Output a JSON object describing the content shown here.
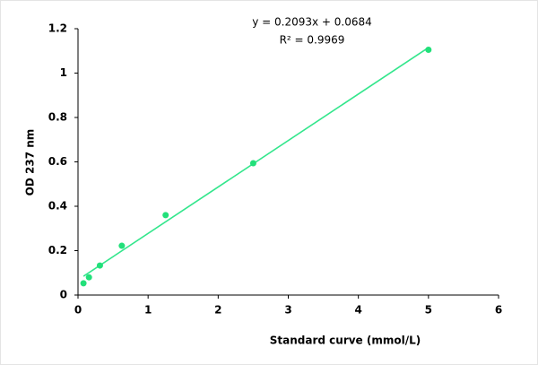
{
  "chart_data": {
    "type": "scatter",
    "x_label": "Standard curve (mmol/L)",
    "y_label": "OD 237 nm",
    "x": [
      0.078,
      0.156,
      0.3125,
      0.625,
      1.25,
      2.5,
      5
    ],
    "values": [
      0.053,
      0.08,
      0.133,
      0.222,
      0.36,
      0.594,
      1.105
    ],
    "color": "#22e07a",
    "xlim": [
      0,
      6
    ],
    "xticks": [
      0,
      1,
      2,
      3,
      4,
      5,
      6
    ],
    "ylim": [
      0,
      1.2
    ],
    "yticks": [
      0,
      0.2,
      0.4,
      0.6,
      0.8,
      1,
      1.2
    ],
    "trendline": {
      "slope": 0.2093,
      "intercept": 0.0684,
      "color": "#33e68c",
      "equation": "y = 0.2093x + 0.0684",
      "r_squared": "R² = 0.9969"
    }
  }
}
